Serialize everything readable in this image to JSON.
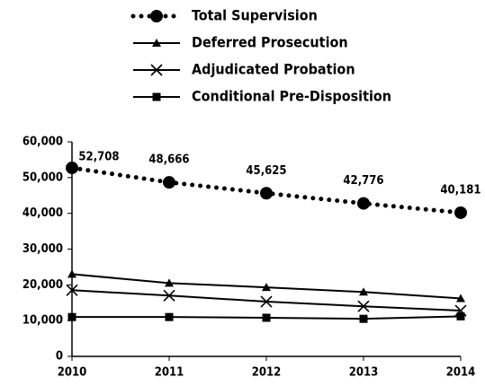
{
  "chart_data": {
    "type": "line",
    "categories": [
      "2010",
      "2011",
      "2012",
      "2013",
      "2014"
    ],
    "series": [
      {
        "name": "Total Supervision",
        "color": "#000000",
        "marker": "circle",
        "dash": "dotted",
        "values": [
          52708,
          48666,
          45625,
          42776,
          40181
        ],
        "value_labels": [
          "52,708",
          "48,666",
          "45,625",
          "42,776",
          "40,181"
        ]
      },
      {
        "name": "Deferred Prosecution",
        "color": "#000000",
        "marker": "triangle",
        "dash": "solid",
        "values": [
          23000,
          20500,
          19300,
          18000,
          16200
        ]
      },
      {
        "name": "Adjudicated Probation",
        "color": "#000000",
        "marker": "x",
        "dash": "solid",
        "values": [
          18500,
          17000,
          15300,
          14000,
          12800
        ]
      },
      {
        "name": "Conditional Pre-Disposition",
        "color": "#000000",
        "marker": "square",
        "dash": "solid",
        "values": [
          11000,
          11000,
          10800,
          10500,
          11200
        ]
      }
    ],
    "ylim": [
      0,
      60000
    ],
    "yticks": [
      {
        "value": 0,
        "label": "0"
      },
      {
        "value": 10000,
        "label": "10,000"
      },
      {
        "value": 20000,
        "label": "20,000"
      },
      {
        "value": 30000,
        "label": "30,000"
      },
      {
        "value": 40000,
        "label": "40,000"
      },
      {
        "value": 50000,
        "label": "50,000"
      },
      {
        "value": 60000,
        "label": "60,000"
      }
    ],
    "legend": "top",
    "grid": false
  }
}
